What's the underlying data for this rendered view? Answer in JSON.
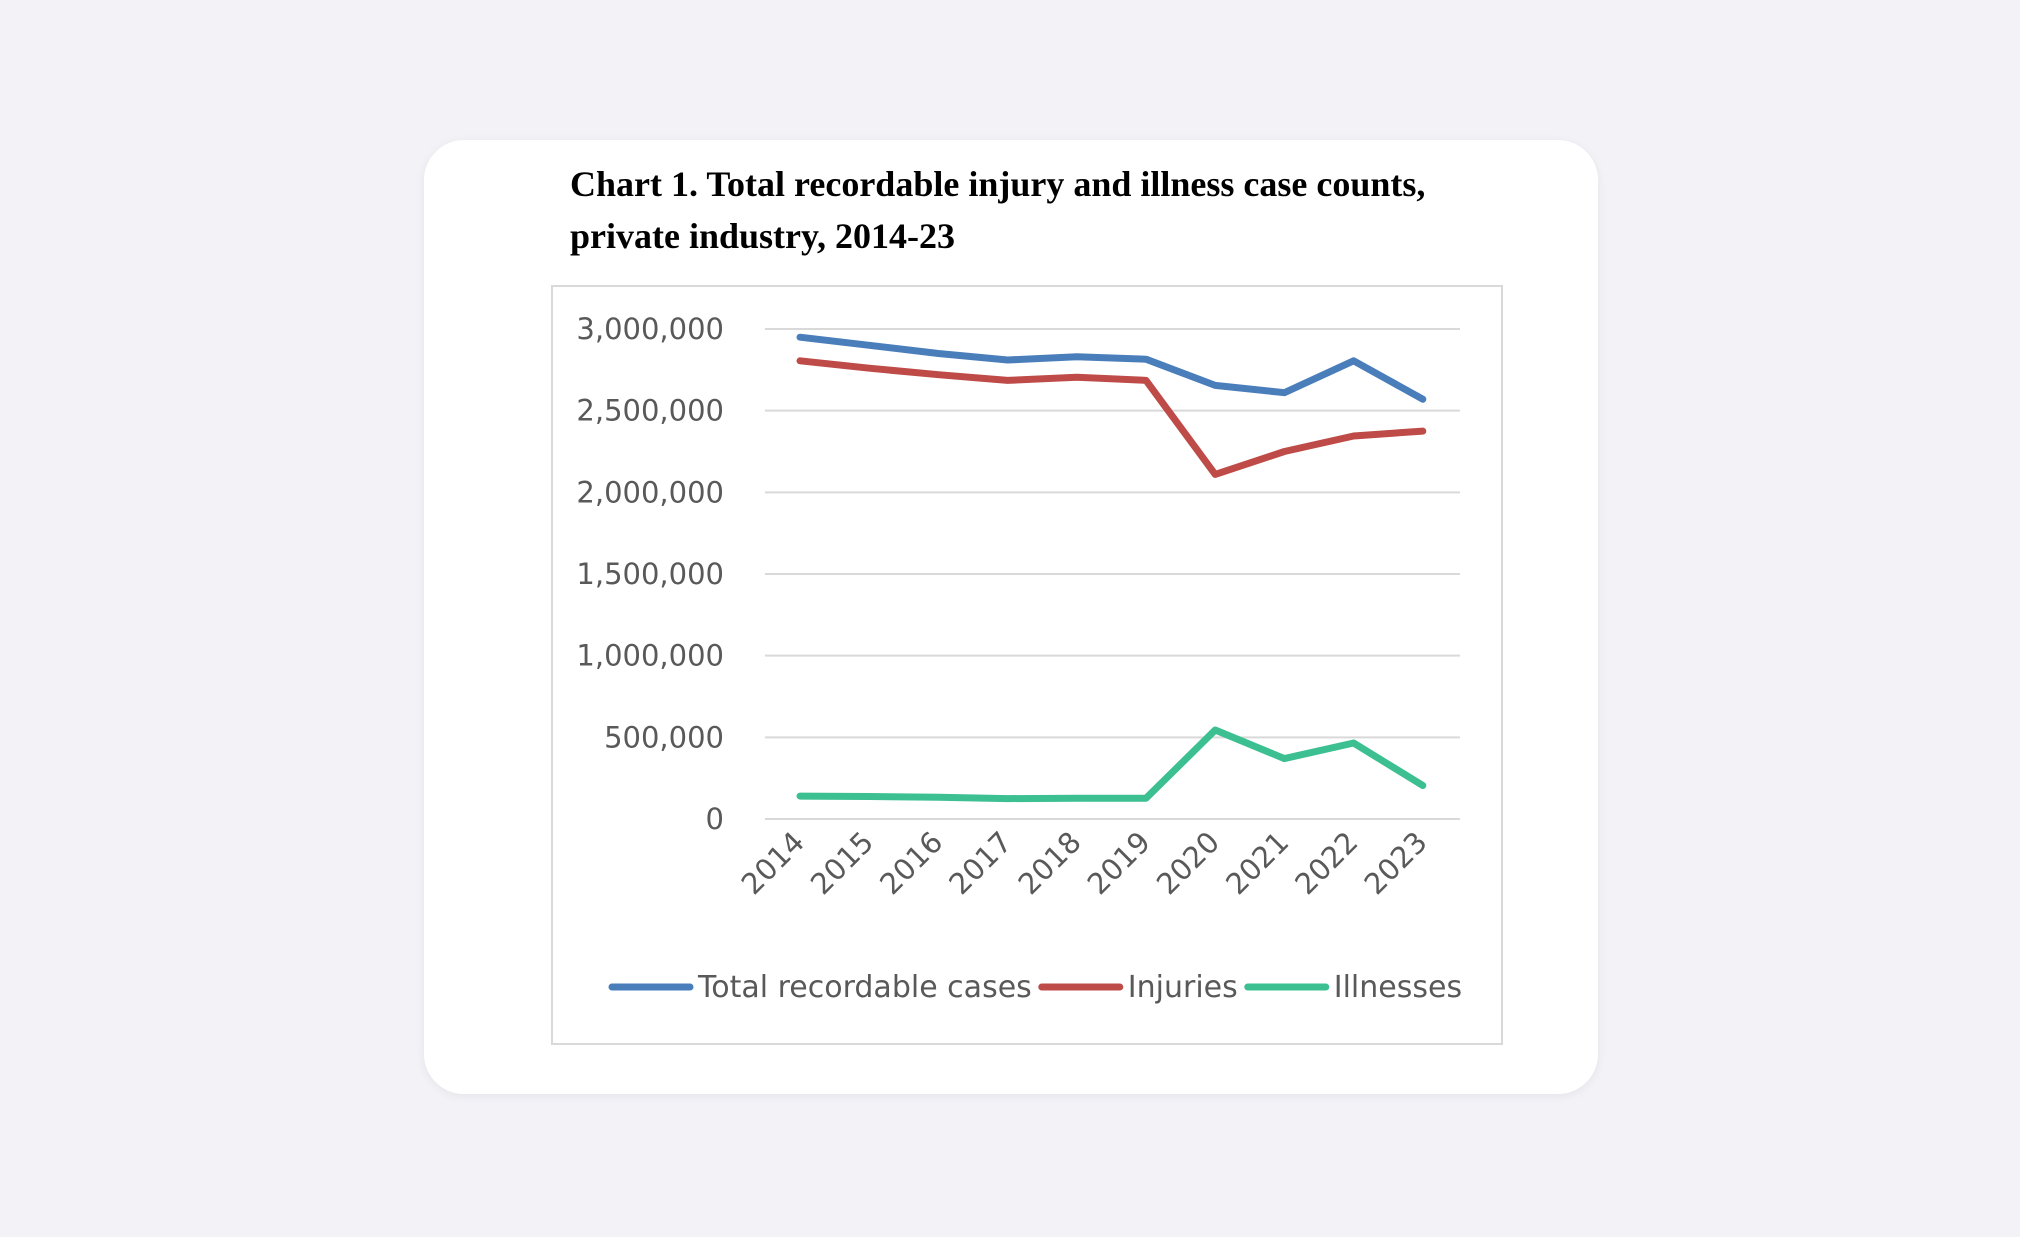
{
  "chart_data": {
    "type": "line",
    "title": "Chart 1. Total recordable injury and illness case counts, private industry, 2014-23",
    "categories": [
      "2014",
      "2015",
      "2016",
      "2017",
      "2018",
      "2019",
      "2020",
      "2021",
      "2022",
      "2023"
    ],
    "series": [
      {
        "name": "Total recordable cases",
        "color": "#4a7ebb",
        "values": [
          2950000,
          2900000,
          2850000,
          2810000,
          2830000,
          2815000,
          2655000,
          2610000,
          2805000,
          2570000
        ]
      },
      {
        "name": "Injuries",
        "color": "#be4b48",
        "values": [
          2805000,
          2760000,
          2720000,
          2685000,
          2705000,
          2685000,
          2110000,
          2250000,
          2345000,
          2375000
        ]
      },
      {
        "name": "Illnesses",
        "color": "#3cbf91",
        "values": [
          140000,
          138000,
          133000,
          125000,
          127000,
          127000,
          545000,
          370000,
          465000,
          205000
        ]
      }
    ],
    "yticks": [
      "3,000,000",
      "2,500,000",
      "2,000,000",
      "1,500,000",
      "1,000,000",
      "500,000",
      "0"
    ],
    "ylim": [
      0,
      3000000
    ],
    "grid": true,
    "legend_position": "bottom"
  }
}
